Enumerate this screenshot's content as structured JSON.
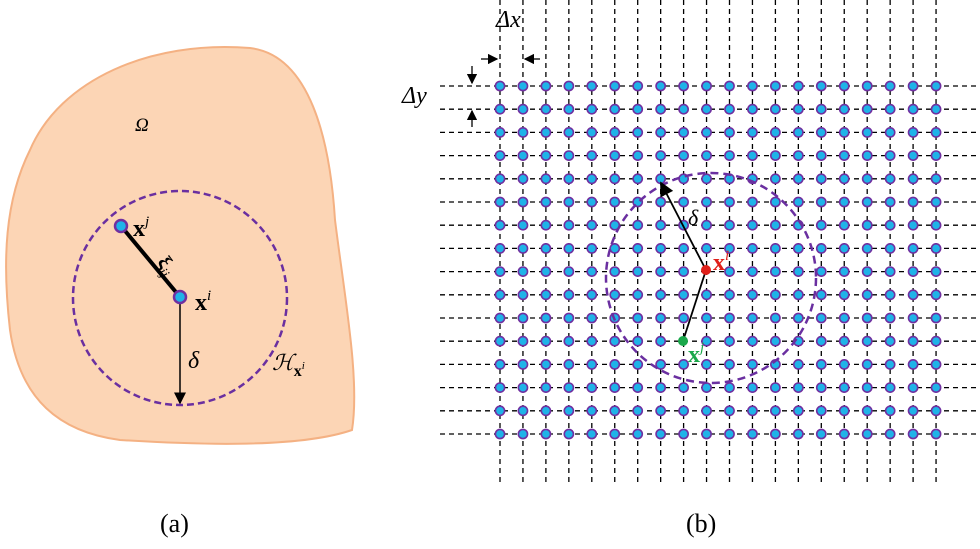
{
  "colors": {
    "domain_fill": "#fcd5b5",
    "domain_stroke": "#f4b183",
    "horizon": "#6a2fa0",
    "node_fill": "#1fb3e8",
    "node_stroke": "#7030a0",
    "xi_color": "#e0201a",
    "xj_color": "#1aa84a"
  },
  "panel_a": {
    "caption": "(a)",
    "omega": "Ω",
    "xj": "x",
    "xj_sup": "j",
    "xi": "x",
    "xi_sup": "i",
    "xi_bond": "ξ",
    "xi_bond_sub": "ij",
    "delta": "δ",
    "horizon": "ℋ",
    "horizon_sub": "x",
    "horizon_sub_sup": "i"
  },
  "panel_b": {
    "caption": "(b)",
    "dx": "Δx",
    "dy": "Δy",
    "delta": "δ",
    "xi": "x",
    "xi_sup": "i",
    "xj": "x",
    "xj_sup": "j",
    "grid_columns": 20,
    "grid_rows": 16
  }
}
